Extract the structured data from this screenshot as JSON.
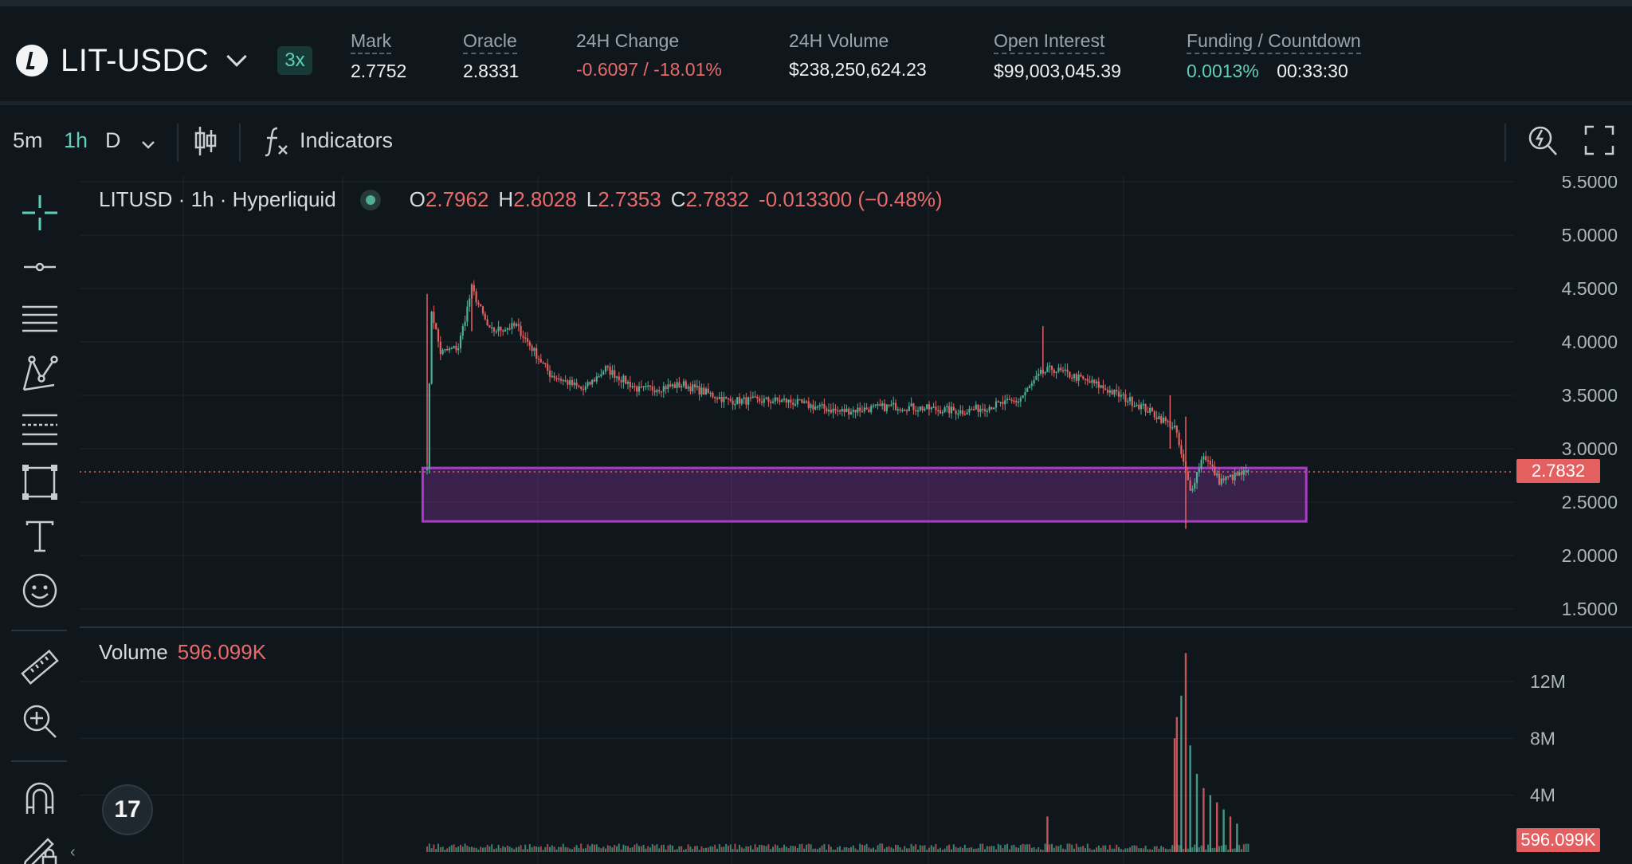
{
  "header": {
    "pair": "LIT-USDC",
    "leverage": "3x",
    "stats": [
      {
        "label": "Mark",
        "value": "2.7752"
      },
      {
        "label": "Oracle",
        "value": "2.8331"
      },
      {
        "label": "24H Change",
        "value": "-0.6097 / -18.01%"
      },
      {
        "label": "24H Volume",
        "value": "$238,250,624.23"
      },
      {
        "label": "Open Interest",
        "value": "$99,003,045.39"
      },
      {
        "label": "Funding / Countdown",
        "value": "0.0013%",
        "value2": "00:33:30"
      }
    ]
  },
  "toolbar": {
    "intervals": [
      "5m",
      "1h",
      "D"
    ],
    "active_interval": "1h",
    "indicators_label": "Indicators"
  },
  "legend": {
    "symbol": "LITUSD · 1h · Hyperliquid",
    "o_label": "O",
    "o": "2.7962",
    "h_label": "H",
    "h": "2.8028",
    "l_label": "L",
    "l": "2.7353",
    "c_label": "C",
    "c": "2.7832",
    "change": "-0.013300 (−0.48%)"
  },
  "volume_legend": {
    "label": "Volume",
    "value": "596.099K"
  },
  "price_axis": [
    "5.5000",
    "5.0000",
    "4.5000",
    "4.0000",
    "3.5000",
    "3.0000",
    "2.5000",
    "2.0000",
    "1.5000"
  ],
  "volume_axis": [
    "12M",
    "8M",
    "4M"
  ],
  "last_price_tag": "2.7832",
  "last_volume_tag": "596.099K",
  "colors": {
    "up": "#4fae96",
    "down": "#e46060",
    "accent": "#5fd0b8",
    "zone": "#a83dc4"
  },
  "chart_data": {
    "type": "candlestick",
    "symbol": "LITUSD",
    "interval": "1h",
    "y_range": [
      1.5,
      5.5
    ],
    "volume_range": [
      0,
      12000000
    ],
    "price_path": [
      {
        "bar": 0,
        "price": 2.85
      },
      {
        "bar": 2,
        "price": 4.3
      },
      {
        "bar": 6,
        "price": 3.9
      },
      {
        "bar": 14,
        "price": 3.95
      },
      {
        "bar": 20,
        "price": 4.5
      },
      {
        "bar": 28,
        "price": 4.1
      },
      {
        "bar": 40,
        "price": 4.15
      },
      {
        "bar": 55,
        "price": 3.7
      },
      {
        "bar": 70,
        "price": 3.55
      },
      {
        "bar": 80,
        "price": 3.75
      },
      {
        "bar": 95,
        "price": 3.55
      },
      {
        "bar": 115,
        "price": 3.6
      },
      {
        "bar": 135,
        "price": 3.45
      },
      {
        "bar": 160,
        "price": 3.45
      },
      {
        "bar": 185,
        "price": 3.35
      },
      {
        "bar": 210,
        "price": 3.4
      },
      {
        "bar": 240,
        "price": 3.35
      },
      {
        "bar": 265,
        "price": 3.45
      },
      {
        "bar": 275,
        "price": 3.7
      },
      {
        "bar": 280,
        "price": 3.75
      },
      {
        "bar": 300,
        "price": 3.6
      },
      {
        "bar": 320,
        "price": 3.4
      },
      {
        "bar": 335,
        "price": 3.2
      },
      {
        "bar": 342,
        "price": 2.6
      },
      {
        "bar": 348,
        "price": 2.95
      },
      {
        "bar": 355,
        "price": 2.7
      },
      {
        "bar": 368,
        "price": 2.78
      }
    ],
    "zone": {
      "price_top": 2.82,
      "price_bottom": 2.32,
      "bar_start": -2,
      "bar_end": 394
    },
    "volume_spikes": [
      {
        "bar": 340,
        "volume": 14000000
      },
      {
        "bar": 338,
        "volume": 11000000
      },
      {
        "bar": 336,
        "volume": 9500000
      },
      {
        "bar": 342,
        "volume": 7500000
      },
      {
        "bar": 335,
        "volume": 8000000
      },
      {
        "bar": 345,
        "volume": 5500000
      },
      {
        "bar": 348,
        "volume": 4500000
      },
      {
        "bar": 351,
        "volume": 4000000
      },
      {
        "bar": 354,
        "volume": 3500000
      },
      {
        "bar": 357,
        "volume": 3000000
      },
      {
        "bar": 360,
        "volume": 2500000
      },
      {
        "bar": 363,
        "volume": 2000000
      },
      {
        "bar": 278,
        "volume": 2500000
      }
    ]
  }
}
